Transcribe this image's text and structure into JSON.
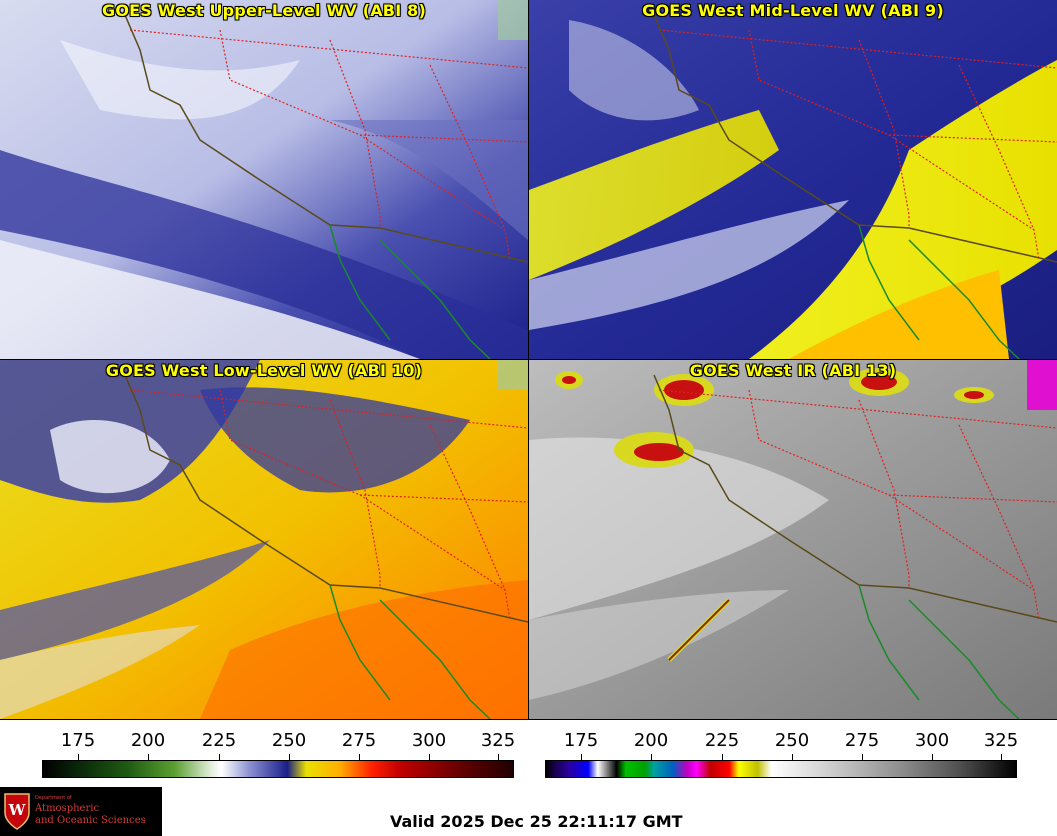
{
  "panels": [
    {
      "title": "GOES West Upper-Level WV (ABI 8)"
    },
    {
      "title": "GOES West Mid-Level WV (ABI 9)"
    },
    {
      "title": "GOES West Low-Level WV (ABI 10)"
    },
    {
      "title": "GOES West IR (ABI 13)"
    }
  ],
  "colorbars": {
    "wv": {
      "ticks": [
        "175",
        "200",
        "225",
        "250",
        "275",
        "300",
        "325"
      ]
    },
    "ir": {
      "ticks": [
        "175",
        "200",
        "225",
        "250",
        "275",
        "300",
        "325"
      ]
    }
  },
  "logo": {
    "dept": "Department of",
    "line1": "Atmospheric",
    "line2": "and Oceanic Sciences"
  },
  "valid_time": "Valid 2025 Dec 25 22:11:17 GMT"
}
